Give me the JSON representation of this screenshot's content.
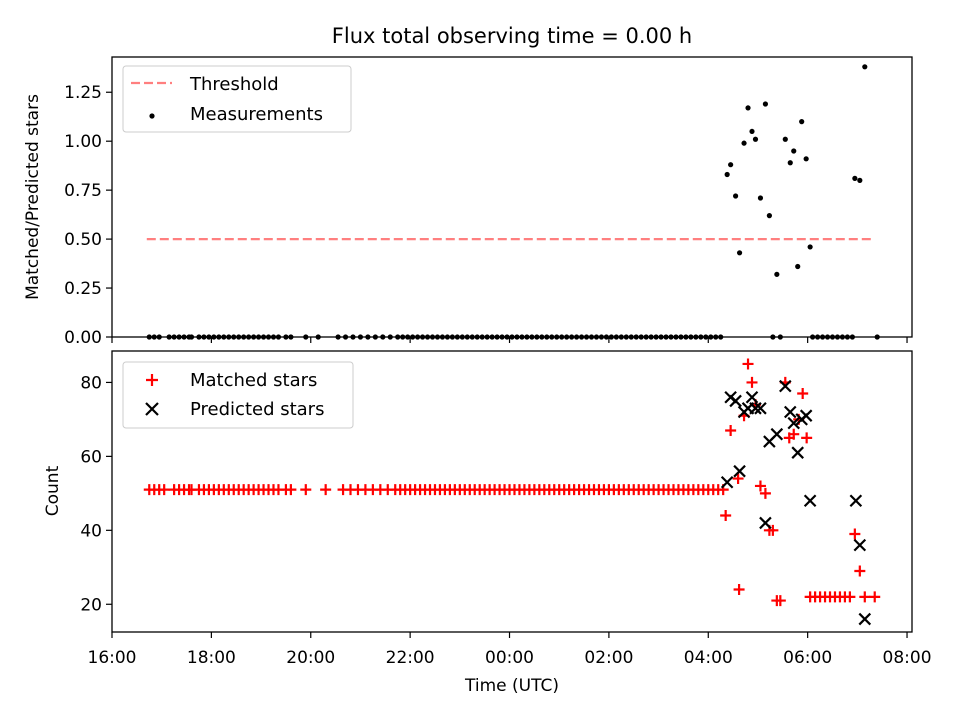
{
  "title": "Flux total observing time = 0.00 h",
  "xlabel": "Time (UTC)",
  "x_ticks": [
    "16:00",
    "18:00",
    "20:00",
    "22:00",
    "00:00",
    "02:00",
    "04:00",
    "06:00",
    "08:00"
  ],
  "colors": {
    "threshold": "#ff7f7f",
    "measurement": "#000000",
    "matched": "#ff0000",
    "predicted": "#000000"
  },
  "chart_data": [
    {
      "type": "scatter",
      "ylabel": "Matched/Predicted stars",
      "xlim": [
        16.0,
        32.1
      ],
      "ylim": [
        0.0,
        1.43
      ],
      "y_ticks": [
        "0.00",
        "0.25",
        "0.50",
        "0.75",
        "1.00",
        "1.25"
      ],
      "legend_position": "top-left",
      "legend": [
        "Threshold",
        "Measurements"
      ],
      "threshold": {
        "name": "Threshold",
        "value": 0.5,
        "x_range": [
          16.7,
          31.35
        ]
      },
      "measurements": {
        "name": "Measurements",
        "zero_x": [
          16.75,
          16.85,
          16.95,
          17.15,
          17.25,
          17.35,
          17.45,
          17.55,
          17.6,
          17.75,
          17.85,
          17.95,
          18.05,
          18.15,
          18.25,
          18.35,
          18.45,
          18.55,
          18.65,
          18.75,
          18.85,
          18.95,
          19.05,
          19.15,
          19.25,
          19.35,
          19.5,
          19.6,
          19.9,
          20.15,
          20.55,
          20.7,
          20.85,
          21.0,
          21.15,
          21.3,
          21.45,
          21.6,
          21.75,
          21.85,
          21.95,
          22.05,
          22.15,
          22.25,
          22.35,
          22.45,
          22.55,
          22.65,
          22.75,
          22.85,
          22.95,
          23.05,
          23.15,
          23.25,
          23.35,
          23.45,
          23.55,
          23.65,
          23.75,
          23.85,
          23.95,
          24.05,
          24.15,
          24.25,
          24.35,
          24.45,
          24.55,
          24.65,
          24.75,
          24.85,
          24.95,
          25.05,
          25.15,
          25.25,
          25.35,
          25.45,
          25.55,
          25.65,
          25.75,
          25.85,
          25.95,
          26.05,
          26.15,
          26.25,
          26.35,
          26.45,
          26.55,
          26.65,
          26.75,
          26.85,
          26.95,
          27.05,
          27.15,
          27.25,
          27.35,
          27.45,
          27.55,
          27.65,
          27.75,
          27.85,
          27.95,
          28.05,
          28.15,
          28.25,
          29.3,
          29.45,
          30.1,
          30.2,
          30.3,
          30.4,
          30.5,
          30.6,
          30.7,
          30.8,
          30.9,
          31.4
        ],
        "points": [
          [
            28.38,
            0.83
          ],
          [
            28.45,
            0.88
          ],
          [
            28.55,
            0.72
          ],
          [
            28.63,
            0.43
          ],
          [
            28.72,
            0.99
          ],
          [
            28.8,
            1.17
          ],
          [
            28.88,
            1.05
          ],
          [
            28.95,
            1.01
          ],
          [
            29.05,
            0.71
          ],
          [
            29.15,
            1.19
          ],
          [
            29.23,
            0.62
          ],
          [
            29.38,
            0.32
          ],
          [
            29.55,
            1.01
          ],
          [
            29.65,
            0.89
          ],
          [
            29.72,
            0.95
          ],
          [
            29.8,
            0.36
          ],
          [
            29.88,
            1.1
          ],
          [
            29.97,
            0.91
          ],
          [
            30.05,
            0.46
          ],
          [
            30.95,
            0.81
          ],
          [
            31.05,
            0.8
          ],
          [
            31.15,
            1.38
          ]
        ]
      }
    },
    {
      "type": "scatter",
      "ylabel": "Count",
      "xlim": [
        16.0,
        32.1
      ],
      "ylim": [
        12.5,
        88.5
      ],
      "y_ticks": [
        "20",
        "40",
        "60",
        "80"
      ],
      "legend_position": "top-left",
      "legend": [
        "Matched stars",
        "Predicted stars"
      ],
      "matched": {
        "name": "Matched stars",
        "flat_value": 51,
        "flat_x": [
          16.75,
          16.85,
          16.95,
          17.05,
          17.25,
          17.35,
          17.45,
          17.55,
          17.6,
          17.75,
          17.85,
          17.95,
          18.05,
          18.15,
          18.25,
          18.35,
          18.45,
          18.55,
          18.65,
          18.75,
          18.85,
          18.95,
          19.05,
          19.15,
          19.25,
          19.35,
          19.5,
          19.6,
          19.9,
          20.3,
          20.65,
          20.8,
          20.95,
          21.1,
          21.25,
          21.4,
          21.55,
          21.7,
          21.8,
          21.9,
          22.0,
          22.1,
          22.2,
          22.3,
          22.4,
          22.5,
          22.6,
          22.7,
          22.8,
          22.9,
          23.0,
          23.1,
          23.2,
          23.3,
          23.4,
          23.5,
          23.6,
          23.7,
          23.8,
          23.9,
          24.0,
          24.1,
          24.2,
          24.3,
          24.4,
          24.5,
          24.6,
          24.7,
          24.8,
          24.9,
          25.0,
          25.1,
          25.2,
          25.3,
          25.4,
          25.5,
          25.6,
          25.7,
          25.8,
          25.9,
          26.0,
          26.1,
          26.2,
          26.3,
          26.4,
          26.5,
          26.6,
          26.7,
          26.8,
          26.9,
          27.0,
          27.1,
          27.2,
          27.3,
          27.4,
          27.5,
          27.6,
          27.7,
          27.8,
          27.9,
          28.0,
          28.1,
          28.2,
          28.3
        ],
        "points": [
          [
            28.35,
            44
          ],
          [
            28.45,
            67
          ],
          [
            28.6,
            54
          ],
          [
            28.62,
            24
          ],
          [
            28.72,
            71
          ],
          [
            28.8,
            85
          ],
          [
            28.88,
            80
          ],
          [
            28.95,
            74
          ],
          [
            29.05,
            52
          ],
          [
            29.15,
            50
          ],
          [
            29.23,
            40
          ],
          [
            29.3,
            40
          ],
          [
            29.38,
            21
          ],
          [
            29.45,
            21
          ],
          [
            29.55,
            80
          ],
          [
            29.63,
            65
          ],
          [
            29.72,
            66
          ],
          [
            29.82,
            70
          ],
          [
            29.9,
            77
          ],
          [
            29.98,
            65
          ],
          [
            30.05,
            22
          ],
          [
            30.15,
            22
          ],
          [
            30.25,
            22
          ],
          [
            30.35,
            22
          ],
          [
            30.45,
            22
          ],
          [
            30.55,
            22
          ],
          [
            30.65,
            22
          ],
          [
            30.75,
            22
          ],
          [
            30.85,
            22
          ],
          [
            30.95,
            39
          ],
          [
            31.05,
            29
          ],
          [
            31.15,
            22
          ],
          [
            31.35,
            22
          ]
        ]
      },
      "predicted": {
        "name": "Predicted stars",
        "points": [
          [
            28.38,
            53
          ],
          [
            28.45,
            76
          ],
          [
            28.55,
            75
          ],
          [
            28.63,
            56
          ],
          [
            28.72,
            72
          ],
          [
            28.8,
            73
          ],
          [
            28.88,
            76
          ],
          [
            28.95,
            73
          ],
          [
            29.05,
            73
          ],
          [
            29.15,
            42
          ],
          [
            29.23,
            64
          ],
          [
            29.38,
            66
          ],
          [
            29.55,
            79
          ],
          [
            29.65,
            72
          ],
          [
            29.72,
            69
          ],
          [
            29.8,
            61
          ],
          [
            29.88,
            70
          ],
          [
            29.97,
            71
          ],
          [
            30.05,
            48
          ],
          [
            30.97,
            48
          ],
          [
            31.05,
            36
          ],
          [
            31.15,
            16
          ]
        ]
      }
    }
  ]
}
